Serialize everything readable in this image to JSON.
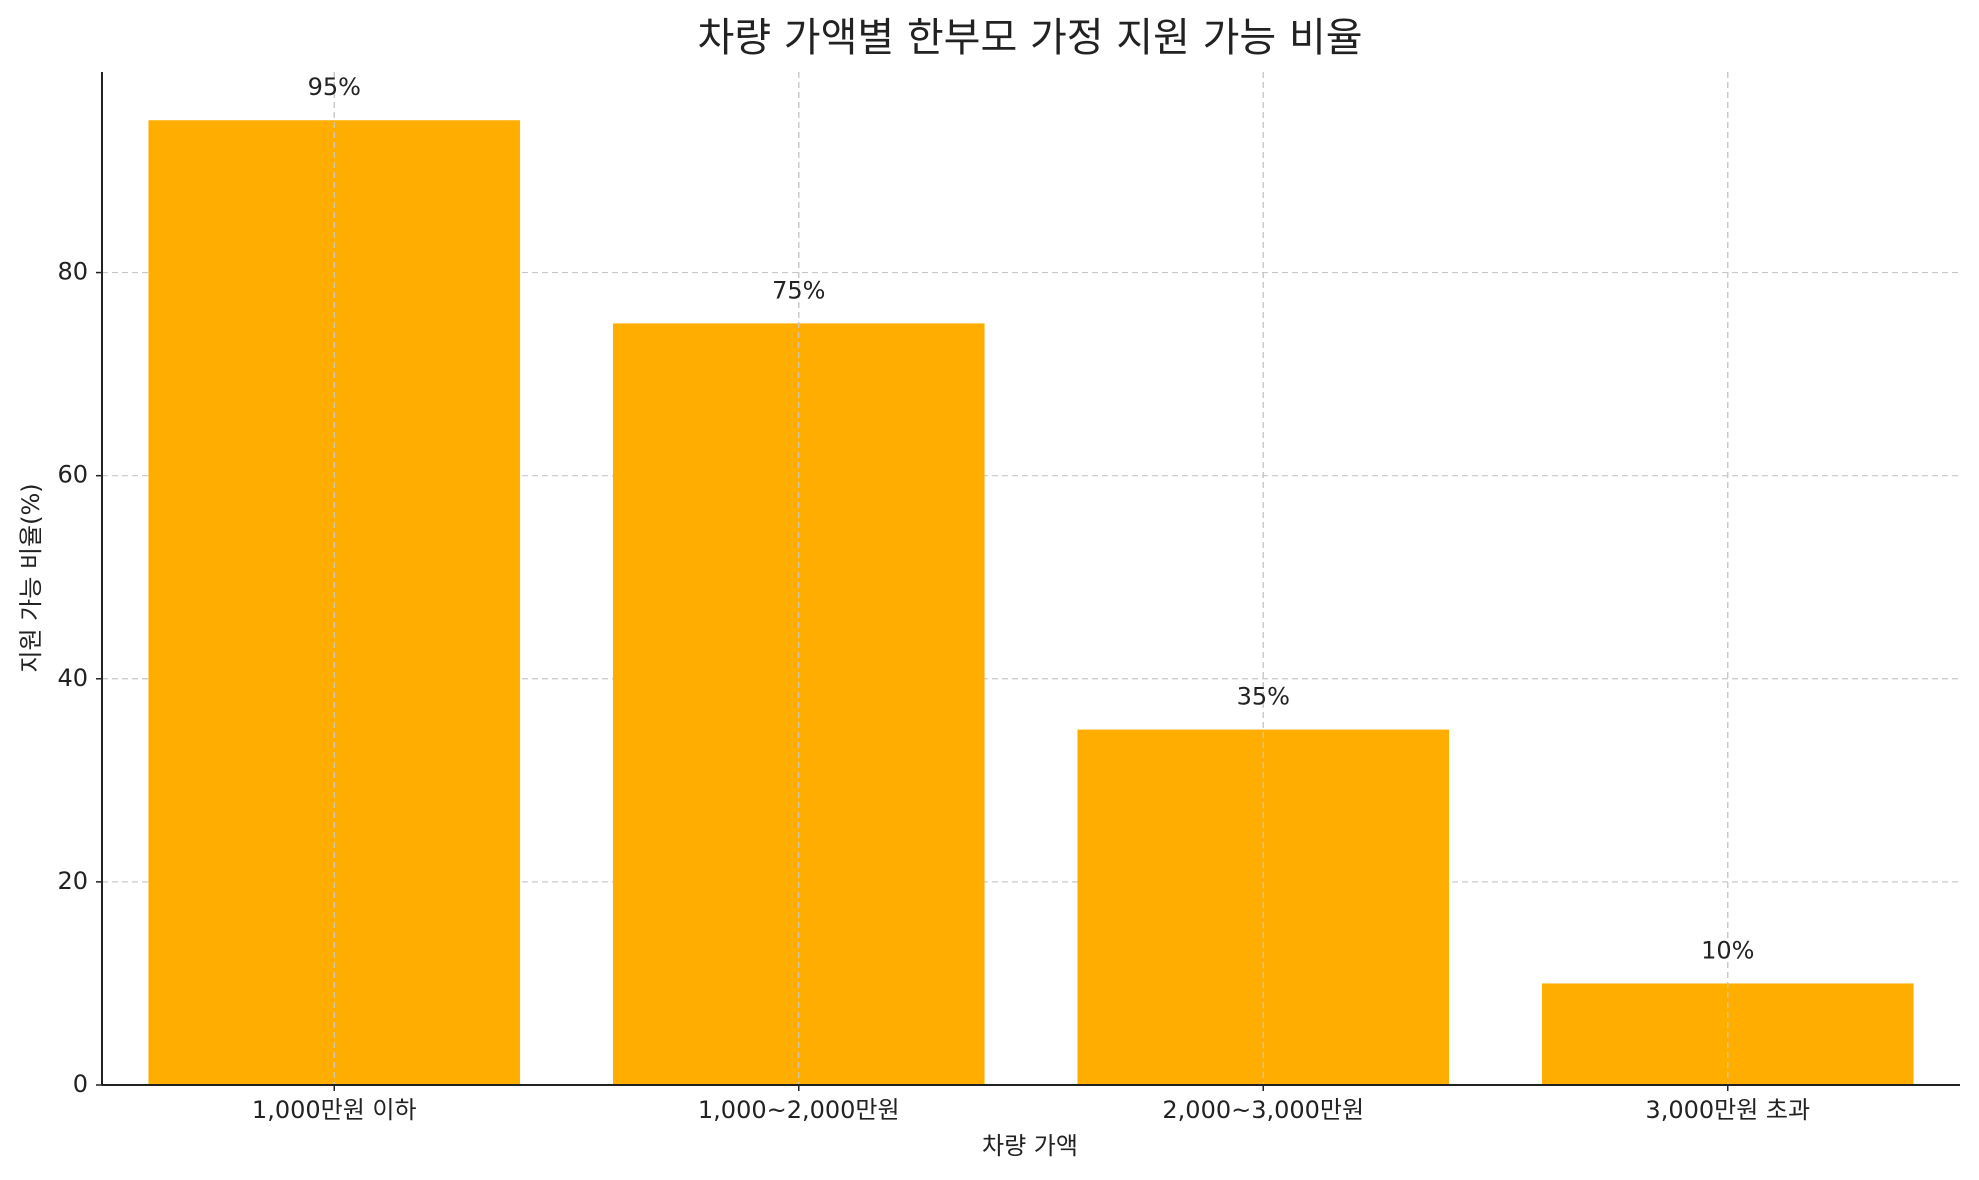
{
  "chart_data": {
    "type": "bar",
    "title": "차량 가액별 한부모 가정 지원 가능 비율",
    "x_label": "차량 가액",
    "y_label": "지원 가능 비율(%)",
    "categories": [
      "1,000만원 이하",
      "1,000~2,000만원",
      "2,000~3,000만원",
      "3,000만원 초과"
    ],
    "values": [
      95,
      75,
      35,
      10
    ],
    "value_labels": [
      "95%",
      "75%",
      "35%",
      "10%"
    ],
    "color": "#ffae00",
    "ylim": [
      0,
      99.75
    ],
    "yticks": [
      0,
      20,
      40,
      60,
      80
    ],
    "grid": true
  }
}
